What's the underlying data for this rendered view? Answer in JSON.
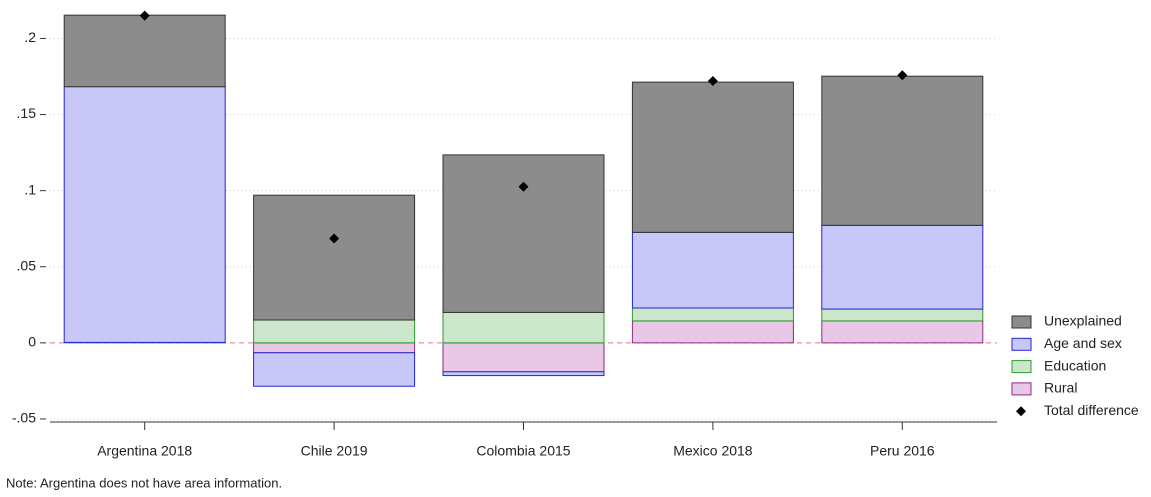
{
  "chart_data": {
    "type": "bar",
    "stacked": true,
    "categories": [
      "Argentina 2018",
      "Chile 2019",
      "Colombia 2015",
      "Mexico 2018",
      "Peru 2016"
    ],
    "series": [
      {
        "name": "Unexplained",
        "color": "#8c8c8c",
        "edge_color": "#333333",
        "values": [
          0.047,
          0.082,
          0.1035,
          0.0987,
          0.098
        ]
      },
      {
        "name": "Age and sex",
        "color": "#c8c8f8",
        "edge_color": "#2323d6",
        "values": [
          0.168,
          -0.022,
          -0.0025,
          0.0497,
          0.055
        ]
      },
      {
        "name": "Education",
        "color": "#cbe6cb",
        "edge_color": "#2e9a2e",
        "values": [
          0.0003,
          0.015,
          0.02,
          0.0085,
          0.0078
        ]
      },
      {
        "name": "Rural",
        "color": "#e8c8e6",
        "edge_color": "#8b2a8b",
        "values": [
          0,
          -0.0065,
          -0.019,
          0.0144,
          0.0144
        ]
      },
      {
        "name": "Total difference",
        "type": "scatter",
        "marker": "diamond",
        "color": "#000000",
        "values": [
          0.215,
          0.0686,
          0.1026,
          0.172,
          0.1758
        ]
      }
    ],
    "stack_order": [
      "Rural",
      "Education",
      "Age and sex",
      "Unexplained"
    ],
    "ylim": [
      -0.052,
      0.22
    ],
    "yticks": [
      {
        "value": -0.05,
        "label": "-.05"
      },
      0,
      {
        "value": 0.05,
        "label": ".05"
      },
      {
        "value": 0.1,
        "label": ".1"
      },
      {
        "value": 0.15,
        "label": ".15"
      },
      {
        "value": 0.2,
        "label": ".2"
      }
    ],
    "grid": true,
    "zero_line_color": "#e07a8a",
    "legend_position": "lower right",
    "note": "Note: Argentina does not have area information."
  }
}
